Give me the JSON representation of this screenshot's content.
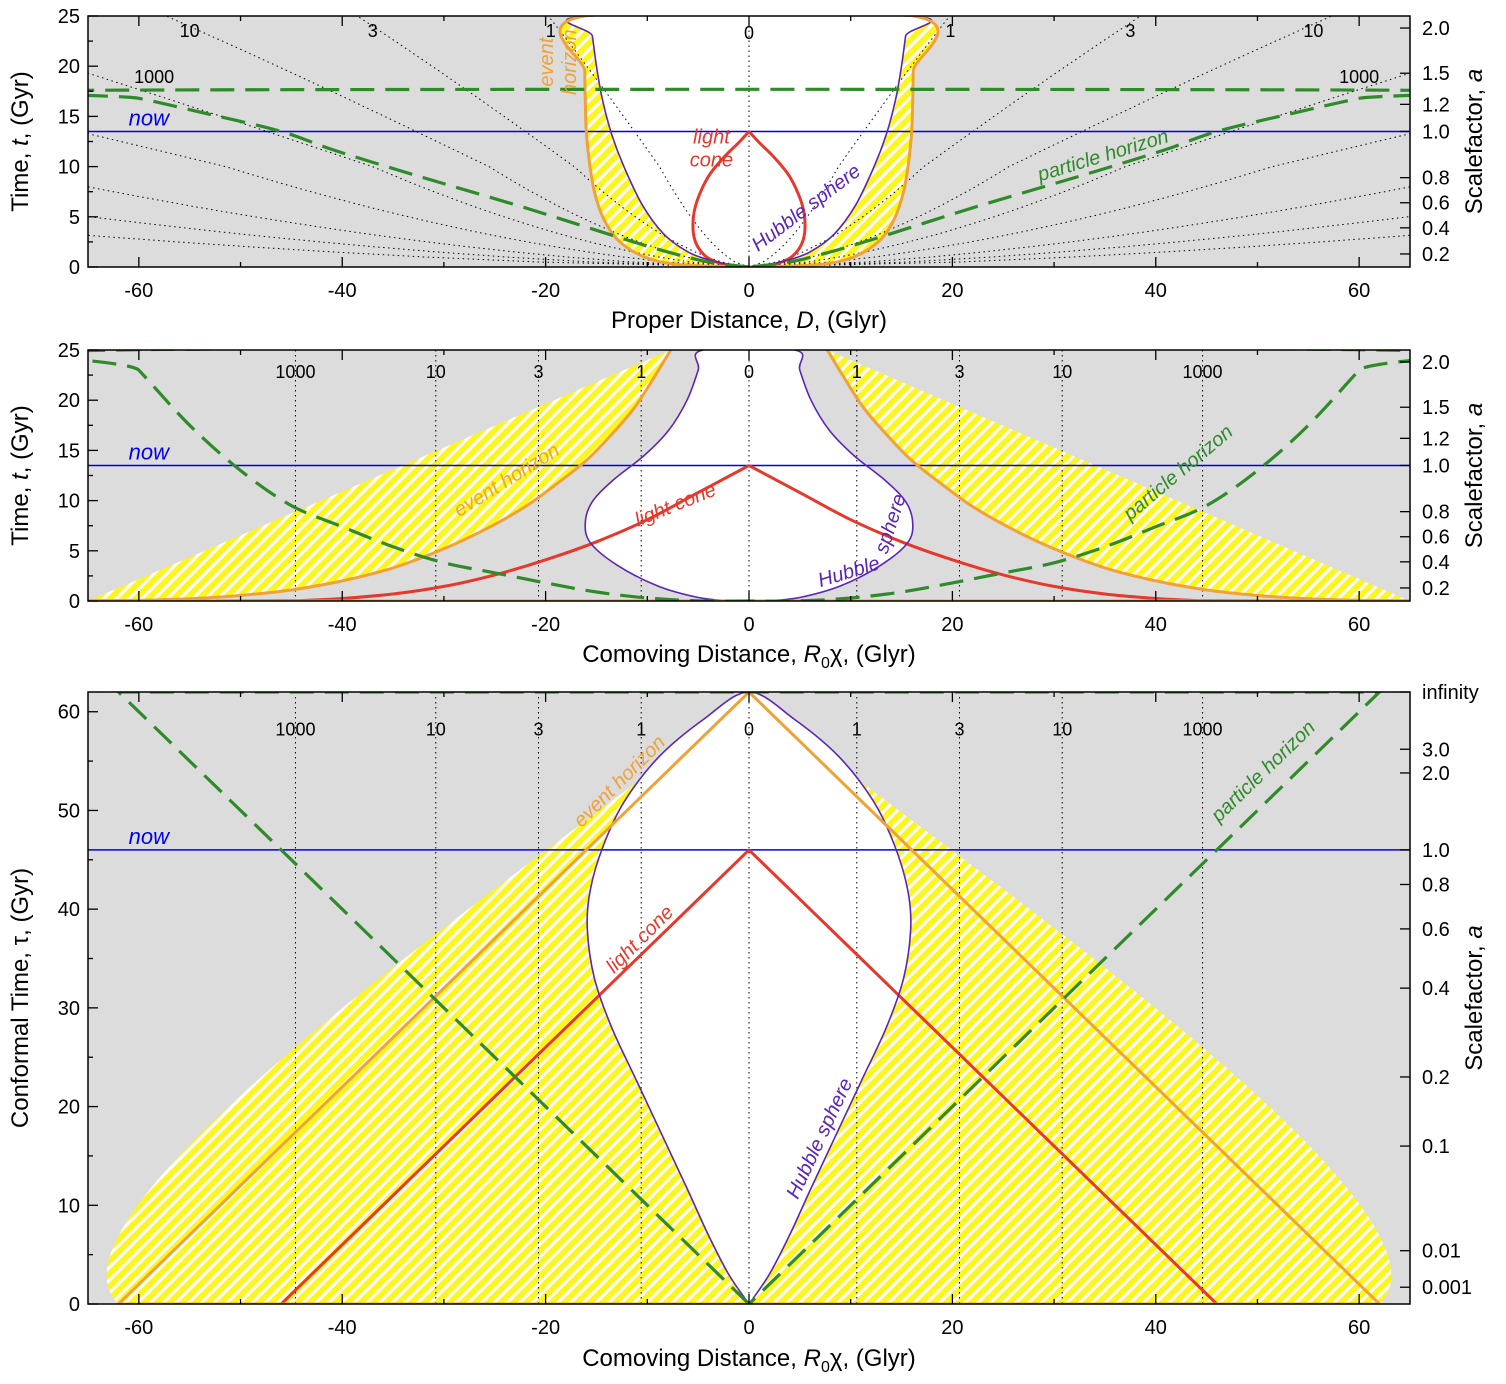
{
  "colors": {
    "outside_fill": "#dcdcdc",
    "inside_fill": "#ffffff",
    "hatch_yellow": "#fdf51f",
    "light_cone": "#e8372b",
    "hubble_sphere": "#5b25b5",
    "event_horizon": "#f0a237",
    "particle_horizon": "#2f8a2a",
    "now_line": "#0000ee"
  },
  "chart_data": [
    {
      "type": "line",
      "panel": "proper",
      "xlabel_parts": [
        "Proper Distance, ",
        "D",
        ", (Glyr)"
      ],
      "ylabel_parts": [
        "Time, ",
        "t",
        ", (Gyr)"
      ],
      "y2label_parts": [
        "Scalefactor, ",
        "a"
      ],
      "xlim": [
        -65,
        65
      ],
      "ylim": [
        0,
        25
      ],
      "x_ticks": [
        -60,
        -40,
        -20,
        0,
        20,
        40,
        60
      ],
      "y_ticks": [
        0,
        5,
        10,
        15,
        20,
        25
      ],
      "y2_ticks": [
        {
          "label": "0.2",
          "t": 1.3
        },
        {
          "label": "0.4",
          "t": 3.9
        },
        {
          "label": "0.6",
          "t": 6.4
        },
        {
          "label": "0.8",
          "t": 8.9
        },
        {
          "label": "1.0",
          "t": 13.5
        },
        {
          "label": "1.2",
          "t": 16.2
        },
        {
          "label": "1.5",
          "t": 19.3
        },
        {
          "label": "2.0",
          "t": 23.8
        }
      ],
      "now": {
        "label": "now",
        "t": 13.5
      },
      "worldline_labels": [
        {
          "text": "10",
          "x": -55,
          "t": 23.6
        },
        {
          "text": "3",
          "x": -37,
          "t": 23.6
        },
        {
          "text": "1",
          "x": -19.5,
          "t": 23.6
        },
        {
          "text": "0",
          "x": 0,
          "t": 23.4
        },
        {
          "text": "1",
          "x": 19.8,
          "t": 23.6
        },
        {
          "text": "3",
          "x": 37.5,
          "t": 23.6
        },
        {
          "text": "10",
          "x": 55.5,
          "t": 23.6
        },
        {
          "text": "1000",
          "x": -58.5,
          "t": 19.0
        },
        {
          "text": "1000",
          "x": 60,
          "t": 19.0
        }
      ],
      "series": [
        {
          "name": "light cone",
          "role": "cone",
          "points": [
            [
              0,
              13.5
            ],
            [
              -1,
              12.4
            ],
            [
              -2.5,
              10.9
            ],
            [
              -4,
              9
            ],
            [
              -5.1,
              6.6
            ],
            [
              -5.5,
              4.6
            ],
            [
              -5.3,
              2.6
            ],
            [
              -4.3,
              1.1
            ],
            [
              -2.8,
              0.35
            ],
            [
              -1.2,
              0.07
            ],
            [
              0,
              0
            ]
          ]
        },
        {
          "name": "Hubble sphere",
          "role": "hubble",
          "points": [
            [
              0,
              0
            ],
            [
              -2,
              0.28
            ],
            [
              -3.9,
              0.7
            ],
            [
              -6,
              1.5
            ],
            [
              -8.4,
              3.3
            ],
            [
              -10.5,
              6.2
            ],
            [
              -12.3,
              10
            ],
            [
              -13.5,
              13.2
            ],
            [
              -14.4,
              16.6
            ],
            [
              -15.0,
              20
            ],
            [
              -15.4,
              23
            ],
            [
              -15.7,
              25
            ]
          ]
        },
        {
          "name": "event horizon",
          "role": "event",
          "points": [
            [
              0,
              0
            ],
            [
              -7,
              0.25
            ],
            [
              -10.5,
              1.1
            ],
            [
              -12.9,
              2.7
            ],
            [
              -14.3,
              4.8
            ],
            [
              -15.2,
              7.5
            ],
            [
              -15.7,
              10.5
            ],
            [
              -16.0,
              13.5
            ],
            [
              -16.1,
              16.5
            ],
            [
              -16.15,
              19.5
            ],
            [
              -16.2,
              25
            ]
          ]
        },
        {
          "name": "particle horizon",
          "role": "particle",
          "points": [
            [
              0,
              0
            ],
            [
              -4,
              0.5
            ],
            [
              -8,
              1.5
            ],
            [
              -12,
              2.7
            ],
            [
              -17,
              4.3
            ],
            [
              -22,
              5.9
            ],
            [
              -28,
              7.7
            ],
            [
              -34,
              9.5
            ],
            [
              -41,
              11.7
            ],
            [
              -46,
              13.5
            ],
            [
              -53,
              15.2
            ],
            [
              -60,
              16.8
            ],
            [
              -65,
              17.6
            ]
          ]
        }
      ],
      "annotations": [
        {
          "lines": [
            "event",
            "horizon"
          ],
          "role": "event",
          "x": -18.3,
          "t": 20.4,
          "rotate": -90
        },
        {
          "lines": [
            "light",
            "cone"
          ],
          "role": "cone",
          "x": -3.7,
          "t": 11.3,
          "rotate": 0
        },
        {
          "lines": [
            "Hubble sphere"
          ],
          "role": "hubble",
          "x": 6.0,
          "t": 5.4,
          "rotate": -37
        },
        {
          "lines": [
            "particle horizon"
          ],
          "role": "particle",
          "x": 35,
          "t": 10.5,
          "rotate": -17
        }
      ]
    },
    {
      "type": "line",
      "panel": "comoving",
      "xlabel_parts": [
        "Comoving Distance, ",
        "R",
        "0",
        "χ, (Glyr)"
      ],
      "ylabel_parts": [
        "Time, ",
        "t",
        ", (Gyr)"
      ],
      "y2label_parts": [
        "Scalefactor, ",
        "a"
      ],
      "xlim": [
        -65,
        65
      ],
      "ylim": [
        0,
        25
      ],
      "x_ticks": [
        -60,
        -40,
        -20,
        0,
        20,
        40,
        60
      ],
      "y_ticks": [
        0,
        5,
        10,
        15,
        20,
        25
      ],
      "y2_ticks": [
        {
          "label": "0.2",
          "t": 1.3
        },
        {
          "label": "0.4",
          "t": 3.9
        },
        {
          "label": "0.6",
          "t": 6.4
        },
        {
          "label": "0.8",
          "t": 8.9
        },
        {
          "label": "1.0",
          "t": 13.5
        },
        {
          "label": "1.2",
          "t": 16.2
        },
        {
          "label": "1.5",
          "t": 19.3
        },
        {
          "label": "2.0",
          "t": 23.8
        }
      ],
      "now": {
        "label": "now",
        "t": 13.5
      },
      "comoving_lines": [
        {
          "label": "1000",
          "x": -44.6
        },
        {
          "label": "10",
          "x": -30.8
        },
        {
          "label": "3",
          "x": -20.7
        },
        {
          "label": "1",
          "x": -10.6
        },
        {
          "label": "0",
          "x": 0
        },
        {
          "label": "1",
          "x": 10.6
        },
        {
          "label": "3",
          "x": 20.7
        },
        {
          "label": "10",
          "x": 30.8
        },
        {
          "label": "1000",
          "x": 44.6
        }
      ],
      "label_row_t": 22.9,
      "series": [
        {
          "name": "light cone",
          "role": "cone",
          "points": [
            [
              0,
              13.5
            ],
            [
              -5,
              10.8
            ],
            [
              -10,
              8.1
            ],
            [
              -15,
              5.9
            ],
            [
              -20,
              4.1
            ],
            [
              -25,
              2.6
            ],
            [
              -30,
              1.45
            ],
            [
              -35,
              0.7
            ],
            [
              -40,
              0.25
            ],
            [
              -44,
              0.05
            ],
            [
              -46,
              0
            ]
          ]
        },
        {
          "name": "Hubble sphere",
          "role": "hubble",
          "points": [
            [
              0,
              0
            ],
            [
              -2,
              0.03
            ],
            [
              -5,
              0.35
            ],
            [
              -9,
              1.5
            ],
            [
              -13,
              3.6
            ],
            [
              -15.6,
              5.8
            ],
            [
              -16.1,
              7.8
            ],
            [
              -15.4,
              9.9
            ],
            [
              -13.4,
              12
            ],
            [
              -10.3,
              14.5
            ],
            [
              -7.9,
              17
            ],
            [
              -6.1,
              20
            ],
            [
              -5,
              23
            ],
            [
              -4.5,
              25
            ]
          ]
        },
        {
          "name": "event horizon",
          "role": "event",
          "points": [
            [
              -7.7,
              25
            ],
            [
              -9.5,
              22
            ],
            [
              -11.3,
              19.2
            ],
            [
              -13.5,
              16.6
            ],
            [
              -16,
              14
            ],
            [
              -19,
              11.6
            ],
            [
              -22,
              9.4
            ],
            [
              -26,
              7.1
            ],
            [
              -30,
              5.2
            ],
            [
              -35,
              3.3
            ],
            [
              -40,
              2
            ],
            [
              -45,
              1.1
            ],
            [
              -50,
              0.55
            ],
            [
              -55,
              0.22
            ],
            [
              -60,
              0.06
            ],
            [
              -65,
              0
            ]
          ]
        },
        {
          "name": "particle horizon",
          "role": "particle",
          "points": [
            [
              0,
              0
            ],
            [
              -5,
              0.02
            ],
            [
              -10,
              0.3
            ],
            [
              -15,
              0.9
            ],
            [
              -20,
              1.8
            ],
            [
              -25,
              2.8
            ],
            [
              -30,
              3.8
            ],
            [
              -35,
              5.4
            ],
            [
              -40,
              7.4
            ],
            [
              -45,
              9.5
            ],
            [
              -50,
              13
            ],
            [
              -55,
              17.5
            ],
            [
              -60,
              23
            ],
            [
              -62,
              25
            ]
          ]
        }
      ],
      "annotations": [
        {
          "lines": [
            "event horizon"
          ],
          "role": "event",
          "x": -23.5,
          "t": 11.5,
          "rotate": -32
        },
        {
          "lines": [
            "light cone"
          ],
          "role": "cone",
          "x": -7,
          "t": 9.0,
          "rotate": -22
        },
        {
          "lines": [
            "Hubble"
          ],
          "role": "hubble",
          "x": 10,
          "t": 2.3,
          "rotate": -17
        },
        {
          "lines": [
            "sphere"
          ],
          "role": "hubble",
          "x": 14.5,
          "t": 7.5,
          "rotate": -72
        },
        {
          "lines": [
            "particle horizon"
          ],
          "role": "particle",
          "x": 42.6,
          "t": 12.3,
          "rotate": -40
        }
      ]
    },
    {
      "type": "line",
      "panel": "conformal",
      "xlabel_parts": [
        "Comoving Distance, ",
        "R",
        "0",
        "χ, (Glyr)"
      ],
      "ylabel_parts": [
        "Conformal Time, τ, (Gyr)"
      ],
      "y2label_parts": [
        "Scalefactor, ",
        "a"
      ],
      "xlim": [
        -65,
        65
      ],
      "ylim": [
        0,
        62
      ],
      "x_ticks": [
        -60,
        -40,
        -20,
        0,
        20,
        40,
        60
      ],
      "y_ticks": [
        0,
        10,
        20,
        30,
        40,
        50,
        60
      ],
      "y2_ticks": [
        {
          "label": "0.001",
          "t": 1.7
        },
        {
          "label": "0.01",
          "t": 5.4
        },
        {
          "label": "0.1",
          "t": 16
        },
        {
          "label": "0.2",
          "t": 23
        },
        {
          "label": "0.4",
          "t": 32
        },
        {
          "label": "0.6",
          "t": 38
        },
        {
          "label": "0.8",
          "t": 42.5
        },
        {
          "label": "1.0",
          "t": 46
        },
        {
          "label": "2.0",
          "t": 53.8
        },
        {
          "label": "3.0",
          "t": 56.2
        },
        {
          "label": "infinity",
          "t": 62
        }
      ],
      "now": {
        "label": "now",
        "t": 46
      },
      "comoving_lines": [
        {
          "label": "1000",
          "x": -44.6
        },
        {
          "label": "10",
          "x": -30.8
        },
        {
          "label": "3",
          "x": -20.7
        },
        {
          "label": "1",
          "x": -10.6
        },
        {
          "label": "0",
          "x": 0
        },
        {
          "label": "1",
          "x": 10.6
        },
        {
          "label": "3",
          "x": 20.7
        },
        {
          "label": "10",
          "x": 30.8
        },
        {
          "label": "1000",
          "x": 44.6
        }
      ],
      "label_row_t": 58.3,
      "series": [
        {
          "name": "light cone",
          "role": "cone",
          "points": [
            [
              0,
              46
            ],
            [
              -46,
              0
            ]
          ]
        },
        {
          "name": "Hubble sphere",
          "role": "hubble",
          "points": [
            [
              0,
              0
            ],
            [
              -2,
              3
            ],
            [
              -4,
              7
            ],
            [
              -6,
              11.5
            ],
            [
              -8.5,
              17
            ],
            [
              -11,
              22.5
            ],
            [
              -13.5,
              28
            ],
            [
              -15.2,
              33
            ],
            [
              -15.9,
              38
            ],
            [
              -15.6,
              42
            ],
            [
              -14.3,
              46.5
            ],
            [
              -12.2,
              51
            ],
            [
              -8.8,
              55.5
            ],
            [
              -4.5,
              59.2
            ],
            [
              0,
              62
            ]
          ]
        },
        {
          "name": "event horizon",
          "role": "event",
          "points": [
            [
              0,
              62
            ],
            [
              -62,
              0
            ]
          ]
        },
        {
          "name": "particle horizon",
          "role": "particle",
          "points": [
            [
              0,
              0
            ],
            [
              -62,
              62
            ]
          ]
        }
      ],
      "annotations": [
        {
          "lines": [
            "event horizon"
          ],
          "role": "event",
          "x": -12.3,
          "t": 52.5,
          "rotate": -45
        },
        {
          "lines": [
            "light cone"
          ],
          "role": "cone",
          "x": -10.3,
          "t": 36.5,
          "rotate": -45
        },
        {
          "lines": [
            "Hubble sphere"
          ],
          "role": "hubble",
          "x": 7.5,
          "t": 16.5,
          "rotate": -65
        },
        {
          "lines": [
            "particle horizon"
          ],
          "role": "particle",
          "x": 51,
          "t": 53.5,
          "rotate": -44
        }
      ]
    }
  ]
}
